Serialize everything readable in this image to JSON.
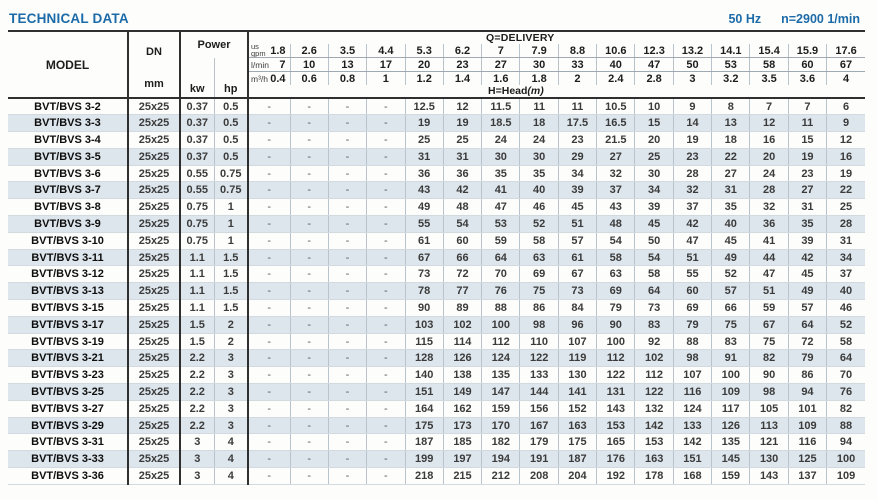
{
  "title": "TECHNICAL DATA",
  "frequency": "50 Hz",
  "speed": "n=2900 1/min",
  "colors": {
    "accent_blue": "#1c6ba8",
    "stripe": "#dde6ec",
    "border_dark": "#2f2f2f"
  },
  "table": {
    "model_header": "MODEL",
    "dn_header": "DN",
    "dn_unit": "mm",
    "power_header": "Power",
    "power_units": [
      "kw",
      "hp"
    ],
    "delivery_label": "Q=DELIVERY",
    "head_label": "H=Head",
    "head_unit": "(m)",
    "units": {
      "gpm_top": "us",
      "gpm": "gpm",
      "lmin": "l/min",
      "m3h": "m³/h"
    },
    "delivery": {
      "gpm": [
        "1.8",
        "2.6",
        "3.5",
        "4.4",
        "5.3",
        "6.2",
        "7",
        "7.9",
        "8.8",
        "10.6",
        "12.3",
        "13.2",
        "14.1",
        "15.4",
        "15.9",
        "17.6"
      ],
      "lmin": [
        "7",
        "10",
        "13",
        "17",
        "20",
        "23",
        "27",
        "30",
        "33",
        "40",
        "47",
        "50",
        "53",
        "58",
        "60",
        "67"
      ],
      "m3h": [
        "0.4",
        "0.6",
        "0.8",
        "1",
        "1.2",
        "1.4",
        "1.6",
        "1.8",
        "2",
        "2.4",
        "2.8",
        "3",
        "3.2",
        "3.5",
        "3.6",
        "4"
      ]
    },
    "rows": [
      {
        "model": "BVT/BVS 3-2",
        "dn": "25x25",
        "kw": "0.37",
        "hp": "0.5",
        "heads": [
          "-",
          "-",
          "-",
          "-",
          "12.5",
          "12",
          "11.5",
          "11",
          "11",
          "10.5",
          "10",
          "9",
          "8",
          "7",
          "7",
          "6"
        ]
      },
      {
        "model": "BVT/BVS 3-3",
        "dn": "25x25",
        "kw": "0.37",
        "hp": "0.5",
        "heads": [
          "-",
          "-",
          "-",
          "-",
          "19",
          "19",
          "18.5",
          "18",
          "17.5",
          "16.5",
          "15",
          "14",
          "13",
          "12",
          "11",
          "9"
        ]
      },
      {
        "model": "BVT/BVS 3-4",
        "dn": "25x25",
        "kw": "0.37",
        "hp": "0.5",
        "heads": [
          "-",
          "-",
          "-",
          "-",
          "25",
          "25",
          "24",
          "24",
          "23",
          "21.5",
          "20",
          "19",
          "18",
          "16",
          "15",
          "12"
        ]
      },
      {
        "model": "BVT/BVS 3-5",
        "dn": "25x25",
        "kw": "0.37",
        "hp": "0.5",
        "heads": [
          "-",
          "-",
          "-",
          "-",
          "31",
          "31",
          "30",
          "30",
          "29",
          "27",
          "25",
          "23",
          "22",
          "20",
          "19",
          "16"
        ]
      },
      {
        "model": "BVT/BVS 3-6",
        "dn": "25x25",
        "kw": "0.55",
        "hp": "0.75",
        "heads": [
          "-",
          "-",
          "-",
          "-",
          "36",
          "36",
          "35",
          "35",
          "34",
          "32",
          "30",
          "28",
          "27",
          "24",
          "23",
          "19"
        ]
      },
      {
        "model": "BVT/BVS 3-7",
        "dn": "25x25",
        "kw": "0.55",
        "hp": "0.75",
        "heads": [
          "-",
          "-",
          "-",
          "-",
          "43",
          "42",
          "41",
          "40",
          "39",
          "37",
          "34",
          "32",
          "31",
          "28",
          "27",
          "22"
        ]
      },
      {
        "model": "BVT/BVS 3-8",
        "dn": "25x25",
        "kw": "0.75",
        "hp": "1",
        "heads": [
          "-",
          "-",
          "-",
          "-",
          "49",
          "48",
          "47",
          "46",
          "45",
          "43",
          "39",
          "37",
          "35",
          "32",
          "31",
          "25"
        ]
      },
      {
        "model": "BVT/BVS 3-9",
        "dn": "25x25",
        "kw": "0.75",
        "hp": "1",
        "heads": [
          "-",
          "-",
          "-",
          "-",
          "55",
          "54",
          "53",
          "52",
          "51",
          "48",
          "45",
          "42",
          "40",
          "36",
          "35",
          "28"
        ]
      },
      {
        "model": "BVT/BVS 3-10",
        "dn": "25x25",
        "kw": "0.75",
        "hp": "1",
        "heads": [
          "-",
          "-",
          "-",
          "-",
          "61",
          "60",
          "59",
          "58",
          "57",
          "54",
          "50",
          "47",
          "45",
          "41",
          "39",
          "31"
        ]
      },
      {
        "model": "BVT/BVS 3-11",
        "dn": "25x25",
        "kw": "1.1",
        "hp": "1.5",
        "heads": [
          "-",
          "-",
          "-",
          "-",
          "67",
          "66",
          "64",
          "63",
          "61",
          "58",
          "54",
          "51",
          "49",
          "44",
          "42",
          "34"
        ]
      },
      {
        "model": "BVT/BVS 3-12",
        "dn": "25x25",
        "kw": "1.1",
        "hp": "1.5",
        "heads": [
          "-",
          "-",
          "-",
          "-",
          "73",
          "72",
          "70",
          "69",
          "67",
          "63",
          "58",
          "55",
          "52",
          "47",
          "45",
          "37"
        ]
      },
      {
        "model": "BVT/BVS 3-13",
        "dn": "25x25",
        "kw": "1.1",
        "hp": "1.5",
        "heads": [
          "-",
          "-",
          "-",
          "-",
          "78",
          "77",
          "76",
          "75",
          "73",
          "69",
          "64",
          "60",
          "57",
          "51",
          "49",
          "40"
        ]
      },
      {
        "model": "BVT/BVS 3-15",
        "dn": "25x25",
        "kw": "1.1",
        "hp": "1.5",
        "heads": [
          "-",
          "-",
          "-",
          "-",
          "90",
          "89",
          "88",
          "86",
          "84",
          "79",
          "73",
          "69",
          "66",
          "59",
          "57",
          "46"
        ]
      },
      {
        "model": "BVT/BVS 3-17",
        "dn": "25x25",
        "kw": "1.5",
        "hp": "2",
        "heads": [
          "-",
          "-",
          "-",
          "-",
          "103",
          "102",
          "100",
          "98",
          "96",
          "90",
          "83",
          "79",
          "75",
          "67",
          "64",
          "52"
        ]
      },
      {
        "model": "BVT/BVS 3-19",
        "dn": "25x25",
        "kw": "1.5",
        "hp": "2",
        "heads": [
          "-",
          "-",
          "-",
          "-",
          "115",
          "114",
          "112",
          "110",
          "107",
          "100",
          "92",
          "88",
          "83",
          "75",
          "72",
          "58"
        ]
      },
      {
        "model": "BVT/BVS 3-21",
        "dn": "25x25",
        "kw": "2.2",
        "hp": "3",
        "heads": [
          "-",
          "-",
          "-",
          "-",
          "128",
          "126",
          "124",
          "122",
          "119",
          "112",
          "102",
          "98",
          "91",
          "82",
          "79",
          "64"
        ]
      },
      {
        "model": "BVT/BVS 3-23",
        "dn": "25x25",
        "kw": "2.2",
        "hp": "3",
        "heads": [
          "-",
          "-",
          "-",
          "-",
          "140",
          "138",
          "135",
          "133",
          "130",
          "122",
          "112",
          "107",
          "100",
          "90",
          "86",
          "70"
        ]
      },
      {
        "model": "BVT/BVS 3-25",
        "dn": "25x25",
        "kw": "2.2",
        "hp": "3",
        "heads": [
          "-",
          "-",
          "-",
          "-",
          "151",
          "149",
          "147",
          "144",
          "141",
          "131",
          "122",
          "116",
          "109",
          "98",
          "94",
          "76"
        ]
      },
      {
        "model": "BVT/BVS 3-27",
        "dn": "25x25",
        "kw": "2.2",
        "hp": "3",
        "heads": [
          "-",
          "-",
          "-",
          "-",
          "164",
          "162",
          "159",
          "156",
          "152",
          "143",
          "132",
          "124",
          "117",
          "105",
          "101",
          "82"
        ]
      },
      {
        "model": "BVT/BVS 3-29",
        "dn": "25x25",
        "kw": "2.2",
        "hp": "3",
        "heads": [
          "-",
          "-",
          "-",
          "-",
          "175",
          "173",
          "170",
          "167",
          "163",
          "153",
          "142",
          "133",
          "126",
          "113",
          "109",
          "88"
        ]
      },
      {
        "model": "BVT/BVS 3-31",
        "dn": "25x25",
        "kw": "3",
        "hp": "4",
        "heads": [
          "-",
          "-",
          "-",
          "-",
          "187",
          "185",
          "182",
          "179",
          "175",
          "165",
          "153",
          "142",
          "135",
          "121",
          "116",
          "94"
        ]
      },
      {
        "model": "BVT/BVS 3-33",
        "dn": "25x25",
        "kw": "3",
        "hp": "4",
        "heads": [
          "-",
          "-",
          "-",
          "-",
          "199",
          "197",
          "194",
          "191",
          "187",
          "176",
          "163",
          "151",
          "145",
          "130",
          "125",
          "100"
        ]
      },
      {
        "model": "BVT/BVS 3-36",
        "dn": "25x25",
        "kw": "3",
        "hp": "4",
        "heads": [
          "-",
          "-",
          "-",
          "-",
          "218",
          "215",
          "212",
          "208",
          "204",
          "192",
          "178",
          "168",
          "159",
          "143",
          "137",
          "109"
        ]
      }
    ]
  }
}
